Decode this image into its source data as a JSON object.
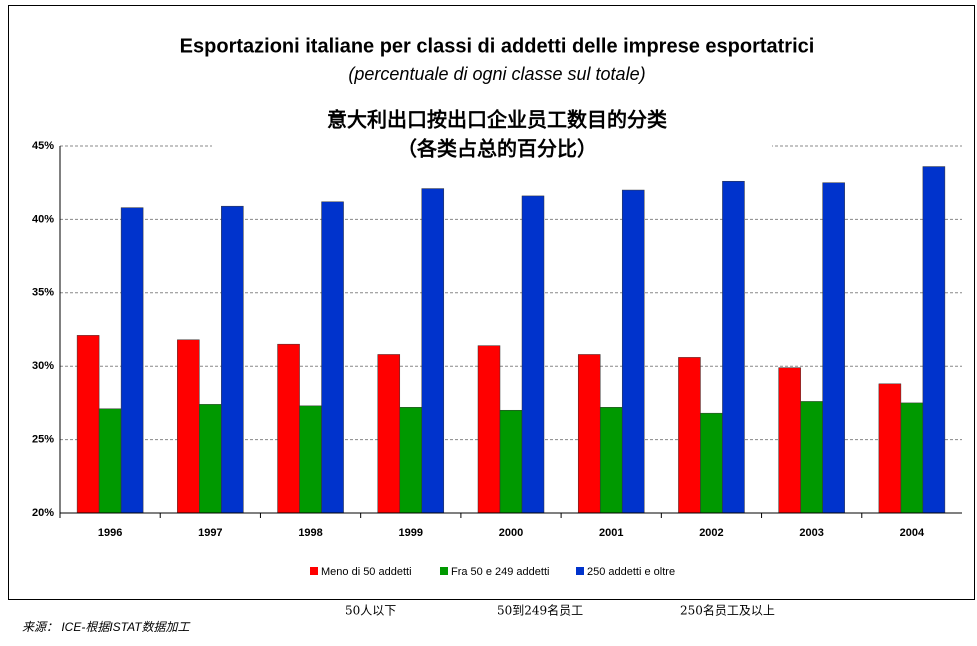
{
  "chart_data": {
    "type": "bar",
    "title": "Esportazioni italiane per classi di addetti delle imprese esportatrici",
    "subtitle": "(percentuale di ogni classe sul totale)",
    "annotations": [
      "意大利出口按出口企业员工数目的分类",
      "（各类占总的百分比）"
    ],
    "categories": [
      "1996",
      "1997",
      "1998",
      "1999",
      "2000",
      "2001",
      "2002",
      "2003",
      "2004"
    ],
    "series": [
      {
        "name": "Meno di 50 addetti",
        "color": "#ff0000",
        "values": [
          32.1,
          31.8,
          31.5,
          30.8,
          31.4,
          30.8,
          30.6,
          29.9,
          28.8
        ]
      },
      {
        "name": "Fra 50 e 249 addetti",
        "color": "#009900",
        "values": [
          27.1,
          27.4,
          27.3,
          27.2,
          27.0,
          27.2,
          26.8,
          27.6,
          27.5
        ]
      },
      {
        "name": "250 addetti e oltre",
        "color": "#0033cc",
        "values": [
          40.8,
          40.9,
          41.2,
          42.1,
          41.6,
          42.0,
          42.6,
          42.5,
          43.6
        ]
      }
    ],
    "legend_translations": [
      "50人以下",
      "50到249名员工",
      "250名员工及以上"
    ],
    "ylim": [
      20,
      45
    ],
    "yticks": [
      {
        "value": 20,
        "label": "20%"
      },
      {
        "value": 25,
        "label": "25%"
      },
      {
        "value": 30,
        "label": "30%"
      },
      {
        "value": 35,
        "label": "35%"
      },
      {
        "value": 40,
        "label": "40%"
      },
      {
        "value": 45,
        "label": "45%"
      }
    ],
    "grid": true,
    "legend": "bottom",
    "source": "来源： ICE-根据ISTAT数据加工"
  }
}
